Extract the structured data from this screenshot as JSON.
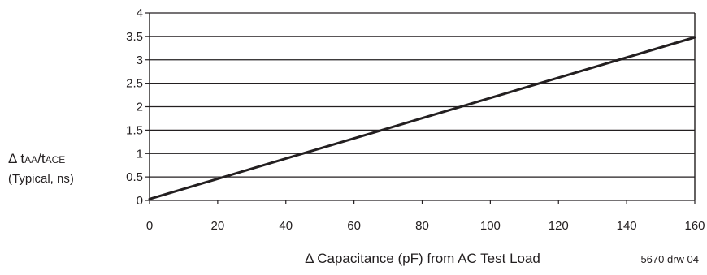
{
  "chart_data": {
    "type": "line",
    "ylabel_delta": "Δ",
    "ylabel_t1": "t",
    "ylabel_sub1": "AA",
    "ylabel_slash": "/t",
    "ylabel_sub2": "ACE",
    "ylabel_line2": "(Typical, ns)",
    "xlabel": "Δ Capacitance (pF) from AC Test Load",
    "drawing_number": "5670 drw 04",
    "x_ticks": [
      "0",
      "20",
      "40",
      "60",
      "80",
      "100",
      "120",
      "140",
      "160"
    ],
    "y_ticks": [
      "0",
      "0.5",
      "1",
      "1.5",
      "2",
      "2.5",
      "3",
      "3.5",
      "4"
    ],
    "xlim": [
      0,
      160
    ],
    "ylim": [
      0,
      4
    ],
    "grid": "horizontal",
    "series": [
      {
        "x": [
          0,
          160
        ],
        "y": [
          0.03,
          3.48
        ]
      }
    ],
    "colors": {
      "line": "#231f20",
      "grid": "#231f20",
      "text": "#231f20"
    }
  }
}
